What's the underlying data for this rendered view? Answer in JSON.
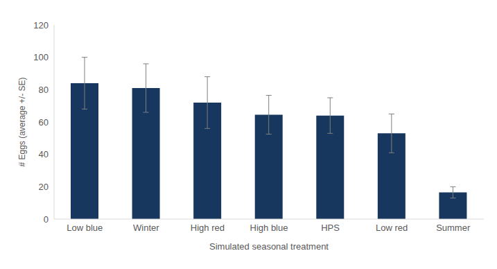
{
  "chart_data": {
    "type": "bar",
    "categories": [
      "Low blue",
      "Winter",
      "High red",
      "High blue",
      "HPS",
      "Low red",
      "Summer"
    ],
    "values": [
      84,
      81,
      72,
      64.5,
      64,
      53,
      16.5
    ],
    "errors": [
      16,
      15,
      16,
      12,
      11,
      12,
      3.5
    ],
    "color": "#17375e",
    "ylim": [
      0,
      120
    ],
    "yticks": [
      0,
      20,
      40,
      60,
      80,
      100,
      120
    ],
    "x_label": "Simulated seasonal treatment",
    "y_label": "# Eggs (average +/- SE)",
    "grid": false
  }
}
